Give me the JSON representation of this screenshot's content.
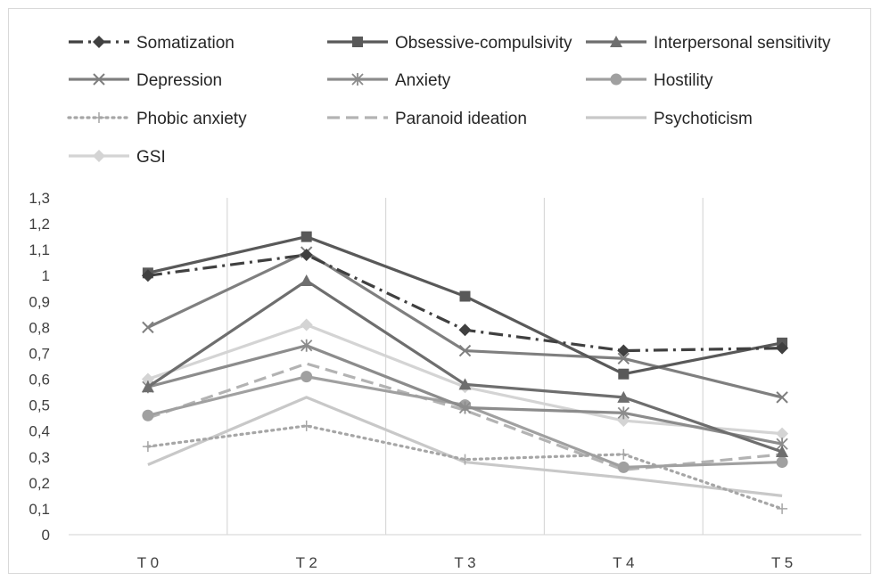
{
  "chart_data": {
    "type": "line",
    "categories": [
      "T0",
      "T2",
      "T3",
      "T4",
      "T5"
    ],
    "category_display": [
      "T 0",
      "T 2",
      "T 3",
      "T 4",
      "T 5"
    ],
    "ylim": [
      0,
      1.3
    ],
    "y_ticks": [
      0,
      0.1,
      0.2,
      0.3,
      0.4,
      0.5,
      0.6,
      0.7,
      0.8,
      0.9,
      1,
      1.1,
      1.2,
      1.3
    ],
    "y_tick_labels": [
      "0",
      "0,1",
      "0,2",
      "0,3",
      "0,4",
      "0,5",
      "0,6",
      "0,7",
      "0,8",
      "0,9",
      "1",
      "1,1",
      "1,2",
      "1,3"
    ],
    "grid": "vertical",
    "legend_position": "top",
    "series": [
      {
        "name": "Somatization",
        "values": [
          1.0,
          1.08,
          0.79,
          0.71,
          0.72
        ],
        "color": "#404040",
        "dash": "dashdot",
        "marker": "diamond"
      },
      {
        "name": "Obsessive-compulsivity",
        "values": [
          1.01,
          1.15,
          0.92,
          0.62,
          0.74
        ],
        "color": "#595959",
        "dash": "solid",
        "marker": "square"
      },
      {
        "name": "Interpersonal sensitivity",
        "values": [
          0.57,
          0.98,
          0.58,
          0.53,
          0.32
        ],
        "color": "#6e6e6e",
        "dash": "solid",
        "marker": "triangle"
      },
      {
        "name": "Depression",
        "values": [
          0.8,
          1.09,
          0.71,
          0.68,
          0.53
        ],
        "color": "#7f7f7f",
        "dash": "solid",
        "marker": "x"
      },
      {
        "name": "Anxiety",
        "values": [
          0.57,
          0.73,
          0.49,
          0.47,
          0.35
        ],
        "color": "#8c8c8c",
        "dash": "solid",
        "marker": "star"
      },
      {
        "name": "Hostility",
        "values": [
          0.46,
          0.61,
          0.5,
          0.26,
          0.28
        ],
        "color": "#a0a0a0",
        "dash": "solid",
        "marker": "circle"
      },
      {
        "name": "Phobic anxiety",
        "values": [
          0.34,
          0.42,
          0.29,
          0.31,
          0.1
        ],
        "color": "#a6a6a6",
        "dash": "dotted",
        "marker": "plus"
      },
      {
        "name": "Paranoid ideation",
        "values": [
          0.45,
          0.66,
          0.48,
          0.25,
          0.31
        ],
        "color": "#b3b3b3",
        "dash": "dashed",
        "marker": "none"
      },
      {
        "name": "Psychoticism",
        "values": [
          0.27,
          0.53,
          0.28,
          0.22,
          0.15
        ],
        "color": "#c8c8c8",
        "dash": "solid",
        "marker": "none"
      },
      {
        "name": "GSI",
        "values": [
          0.6,
          0.81,
          0.57,
          0.44,
          0.39
        ],
        "color": "#d4d4d4",
        "dash": "solid",
        "marker": "diamond"
      }
    ]
  }
}
